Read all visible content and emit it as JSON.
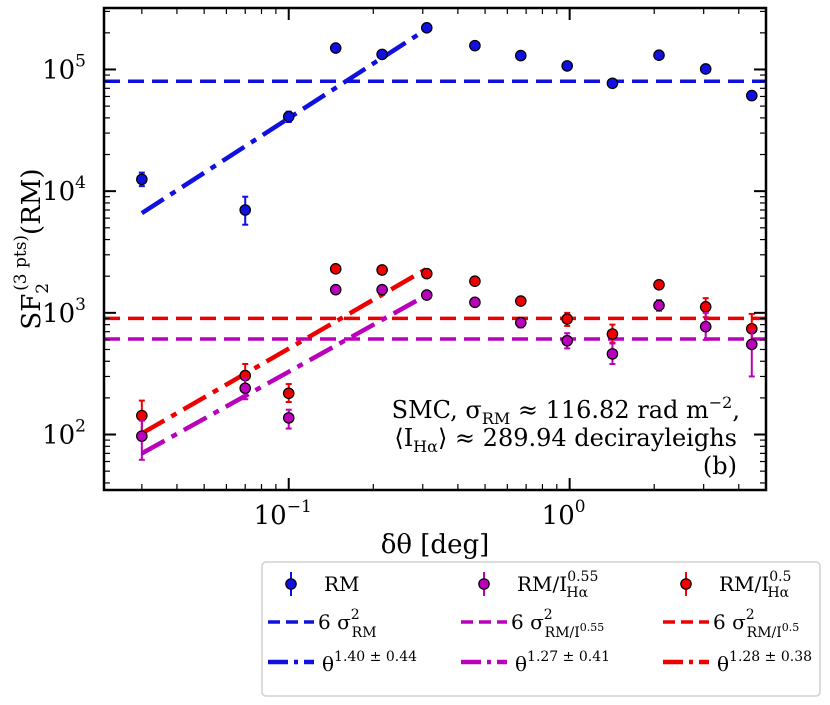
{
  "chart_data": {
    "type": "scatter",
    "scale": {
      "x": "log",
      "y": "log"
    },
    "xlim": [
      0.022,
      5.0
    ],
    "ylim": [
      35,
      320000
    ],
    "xlabel": "δθ [deg]",
    "ylabel": "SF2(3 pts)(RM)",
    "ylabel_base": "SF",
    "ylabel_sub": "2",
    "ylabel_sup": "(3 pts)",
    "ylabel_tail": "(RM)",
    "x_ticks": [
      {
        "value": 0.1,
        "mantissa": "10",
        "exponent": "−1"
      },
      {
        "value": 1,
        "mantissa": "10",
        "exponent": "0"
      }
    ],
    "y_ticks": [
      {
        "value": 100,
        "mantissa": "10",
        "exponent": "2"
      },
      {
        "value": 1000,
        "mantissa": "10",
        "exponent": "3"
      },
      {
        "value": 10000,
        "mantissa": "10",
        "exponent": "4"
      },
      {
        "value": 100000,
        "mantissa": "10",
        "exponent": "5"
      }
    ],
    "annotation": {
      "line1": "SMC, σRM ≈ 116.82 rad m−2,",
      "line1_a": "SMC, σ",
      "line1_sub": "RM",
      "line1_b": " ≈ 116.82 rad m",
      "line1_sup": "−2",
      "line1_c": ",",
      "line2": "⟨IHα⟩ ≈ 289.94 decirayleighs",
      "line2_a": "⟨I",
      "line2_sub": "Hα",
      "line2_b": "⟩ ≈ 289.94 decirayleighs",
      "panel": "(b)"
    },
    "series": [
      {
        "name": "RM",
        "legend_label": "RM",
        "color": "#1010e0",
        "edge": "#000000",
        "points": [
          {
            "x": 0.03,
            "y": 12500,
            "err": [
              11000,
              14200
            ]
          },
          {
            "x": 0.07,
            "y": 7000,
            "err": [
              5300,
              9000
            ]
          },
          {
            "x": 0.1,
            "y": 41000,
            "err": [
              37000,
              45000
            ]
          },
          {
            "x": 0.147,
            "y": 150000
          },
          {
            "x": 0.215,
            "y": 133000
          },
          {
            "x": 0.31,
            "y": 220000
          },
          {
            "x": 0.46,
            "y": 157000
          },
          {
            "x": 0.67,
            "y": 130000
          },
          {
            "x": 0.98,
            "y": 107000
          },
          {
            "x": 1.42,
            "y": 77000
          },
          {
            "x": 2.08,
            "y": 131000
          },
          {
            "x": 3.05,
            "y": 101000
          },
          {
            "x": 4.45,
            "y": 61000
          }
        ],
        "sigma_line": {
          "value": 80000,
          "label": "6 σRM2",
          "label_main": "6 σ",
          "label_sup": "2",
          "label_sub": "RM",
          "label_subsup": ""
        },
        "fit": {
          "x_range": [
            0.03,
            0.31
          ],
          "y_range": [
            6600,
            215000
          ],
          "label": "θ1.40 ± 0.44",
          "label_main": "θ",
          "label_sup": "1.40 ± 0.44"
        }
      },
      {
        "name": "RM/IHα0.55",
        "legend_label": "RM/IHα0.55",
        "legend_a": "RM/I",
        "legend_sup": "0.55",
        "legend_sub": "Hα",
        "color": "#bb00bb",
        "edge": "#000000",
        "points": [
          {
            "x": 0.03,
            "y": 97,
            "err": [
              62,
              130
            ]
          },
          {
            "x": 0.07,
            "y": 240,
            "err": [
              195,
              290
            ]
          },
          {
            "x": 0.1,
            "y": 137,
            "err": [
              112,
              160
            ]
          },
          {
            "x": 0.147,
            "y": 1550
          },
          {
            "x": 0.215,
            "y": 1550
          },
          {
            "x": 0.31,
            "y": 1400
          },
          {
            "x": 0.46,
            "y": 1220
          },
          {
            "x": 0.67,
            "y": 830,
            "err": [
              760,
              900
            ]
          },
          {
            "x": 0.98,
            "y": 590,
            "err": [
              510,
              680
            ]
          },
          {
            "x": 1.42,
            "y": 460,
            "err": [
              380,
              560
            ]
          },
          {
            "x": 2.08,
            "y": 1150,
            "err": [
              1040,
              1270
            ]
          },
          {
            "x": 3.05,
            "y": 770,
            "err": [
              600,
              1000
            ]
          },
          {
            "x": 4.45,
            "y": 550,
            "err": [
              300,
              720
            ]
          }
        ],
        "sigma_line": {
          "value": 610,
          "label": "6 σRM/IHα0.552",
          "label_main": "6 σ",
          "label_sup": "2",
          "label_sub": "RM/I",
          "label_subsup": "0.55"
        },
        "fit": {
          "x_range": [
            0.03,
            0.31
          ],
          "y_range": [
            70,
            1400
          ],
          "label": "θ1.27 ± 0.41",
          "label_main": "θ",
          "label_sup": "1.27 ± 0.41"
        }
      },
      {
        "name": "RM/IHα0.5",
        "legend_label": "RM/IHα0.5",
        "legend_a": "RM/I",
        "legend_sup": "0.5",
        "legend_sub": "Hα",
        "color": "#ee0000",
        "edge": "#000000",
        "points": [
          {
            "x": 0.03,
            "y": 143,
            "err": [
              105,
              190
            ]
          },
          {
            "x": 0.07,
            "y": 305,
            "err": [
              250,
              380
            ]
          },
          {
            "x": 0.1,
            "y": 218,
            "err": [
              185,
              260
            ]
          },
          {
            "x": 0.147,
            "y": 2300
          },
          {
            "x": 0.215,
            "y": 2250
          },
          {
            "x": 0.31,
            "y": 2100
          },
          {
            "x": 0.46,
            "y": 1820
          },
          {
            "x": 0.67,
            "y": 1250
          },
          {
            "x": 0.98,
            "y": 890,
            "err": [
              780,
              1000
            ]
          },
          {
            "x": 1.42,
            "y": 670,
            "err": [
              570,
              800
            ]
          },
          {
            "x": 2.08,
            "y": 1700
          },
          {
            "x": 3.05,
            "y": 1120,
            "err": [
              920,
              1320
            ]
          },
          {
            "x": 4.45,
            "y": 740,
            "err": [
              580,
              980
            ]
          }
        ],
        "sigma_line": {
          "value": 900,
          "label": "6 σRM/IHα0.52",
          "label_main": "6 σ",
          "label_sup": "2",
          "label_sub": "RM/I",
          "label_subsup": "0.5"
        },
        "fit": {
          "x_range": [
            0.03,
            0.31
          ],
          "y_range": [
            102,
            2300
          ],
          "label": "θ1.28 ± 0.38",
          "label_main": "θ",
          "label_sup": "1.28 ± 0.38"
        }
      }
    ],
    "legend": {
      "placement": "below-right",
      "columns": 3,
      "frame": true
    }
  }
}
